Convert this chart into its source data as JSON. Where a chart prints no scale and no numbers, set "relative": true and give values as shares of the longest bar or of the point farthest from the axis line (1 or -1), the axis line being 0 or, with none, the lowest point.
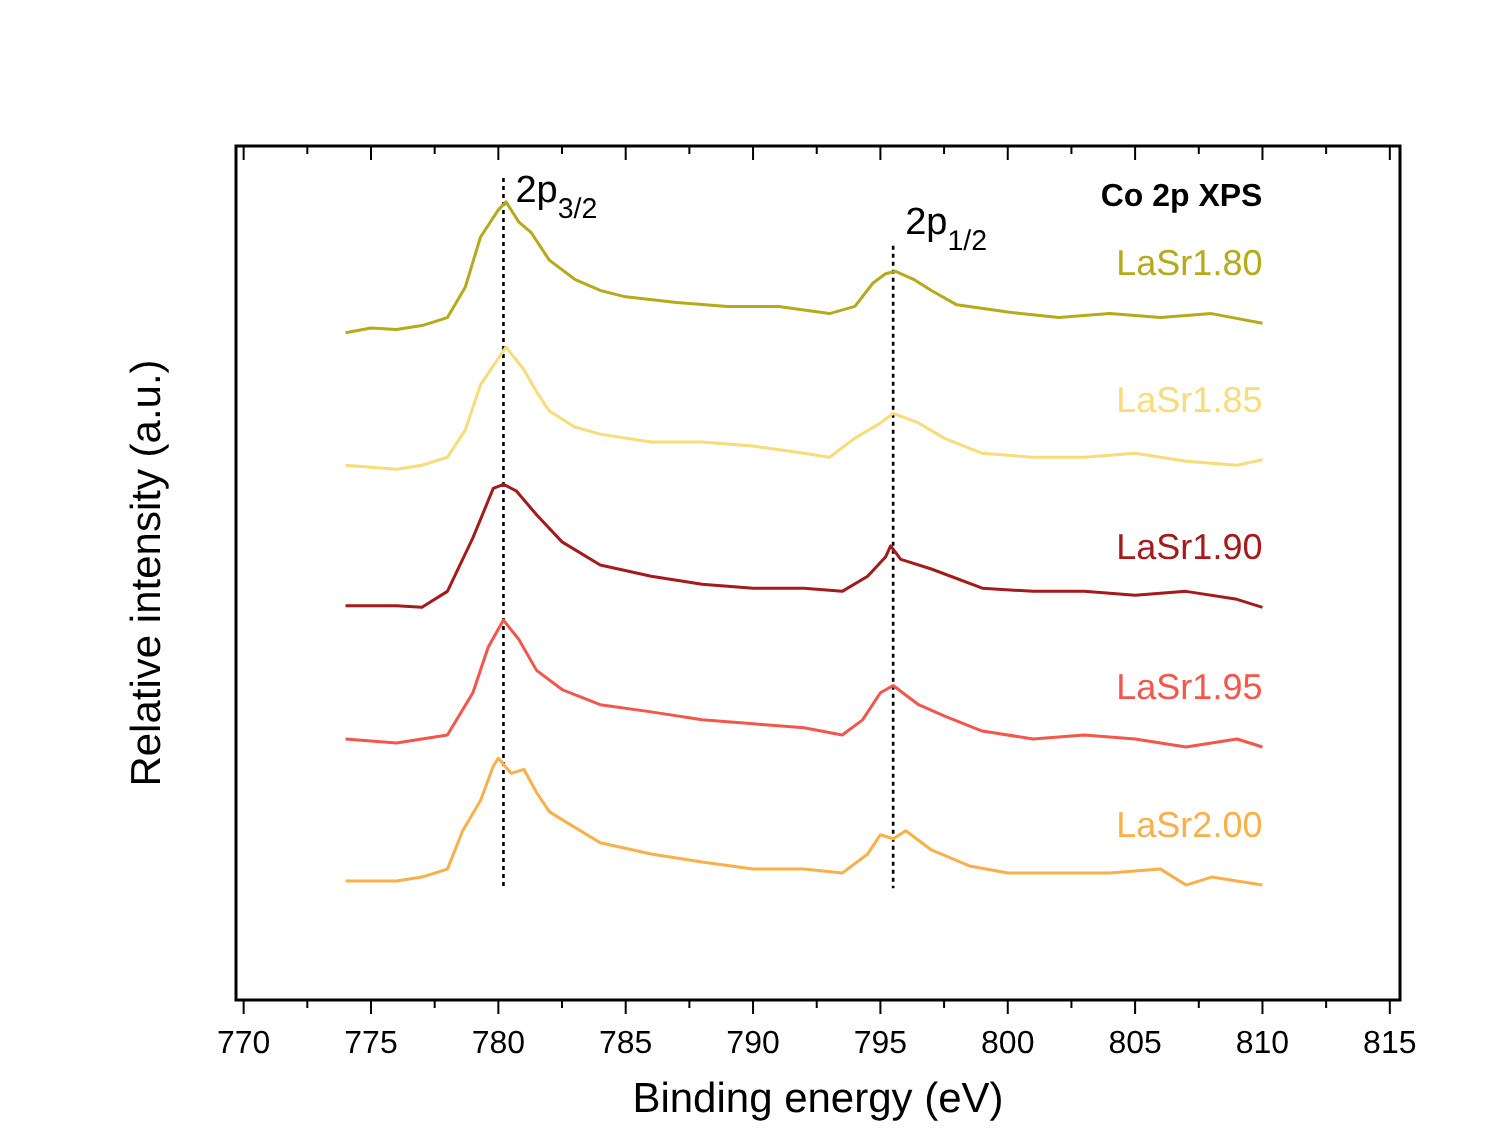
{
  "chart_data": {
    "type": "line",
    "relative": true,
    "xlabel": "Binding energy (eV)",
    "ylabel": "Relative intensity (a.u.)",
    "annotations": [
      "Co 2p XPS"
    ],
    "xlim": [
      769.7,
      815.4
    ],
    "xticks": [
      770,
      {
        "value": 772.5,
        "label": null
      },
      775,
      {
        "value": 777.5,
        "label": null
      },
      780,
      {
        "value": 782.5,
        "label": null
      },
      785,
      {
        "value": 787.5,
        "label": null
      },
      790,
      {
        "value": 792.5,
        "label": null
      },
      795,
      {
        "value": 797.5,
        "label": null
      },
      800,
      {
        "value": 802.5,
        "label": null
      },
      805,
      {
        "value": 807.5,
        "label": null
      },
      810,
      {
        "value": 812.5,
        "label": null
      },
      815
    ],
    "ref_lines": [
      {
        "axis": "x",
        "value": 780.2,
        "label": "2p$_{3/2}$",
        "line_style": "dotted",
        "color": "#000000"
      },
      {
        "axis": "x",
        "value": 795.5,
        "label": "2p$_{1/2}$",
        "line_style": "dotted",
        "color": "#000000"
      }
    ],
    "series": [
      {
        "name": "LaSr1.80",
        "color": "#b5aa1a",
        "x": [
          774,
          775,
          776,
          777,
          778,
          778.7,
          779.3,
          780,
          780.3,
          780.8,
          781.3,
          782,
          783,
          784,
          785,
          787,
          789,
          791,
          793,
          794,
          794.7,
          795.2,
          795.6,
          796.3,
          797,
          798,
          800,
          802,
          804,
          806,
          808,
          810
        ],
        "values": [
          0.836,
          0.842,
          0.84,
          0.845,
          0.855,
          0.893,
          0.956,
          0.99,
          1.0,
          0.975,
          0.961,
          0.927,
          0.903,
          0.889,
          0.881,
          0.874,
          0.869,
          0.869,
          0.86,
          0.869,
          0.898,
          0.91,
          0.913,
          0.903,
          0.889,
          0.871,
          0.862,
          0.855,
          0.86,
          0.855,
          0.86,
          0.848
        ]
      },
      {
        "name": "LaSr1.85",
        "color": "#f9dc7a",
        "x": [
          774,
          776,
          777,
          778,
          778.7,
          779.3,
          780.3,
          781,
          781.5,
          782,
          783,
          784,
          786,
          788,
          790,
          792,
          793,
          794,
          795,
          795.5,
          796.5,
          797.5,
          799,
          801,
          803,
          805,
          807,
          809,
          810
        ],
        "values": [
          0.67,
          0.665,
          0.67,
          0.68,
          0.714,
          0.771,
          0.818,
          0.79,
          0.762,
          0.738,
          0.718,
          0.709,
          0.699,
          0.699,
          0.694,
          0.685,
          0.68,
          0.704,
          0.723,
          0.735,
          0.723,
          0.704,
          0.685,
          0.68,
          0.68,
          0.685,
          0.675,
          0.67,
          0.677
        ]
      },
      {
        "name": "LaSr1.90",
        "color": "#a51a1a",
        "x": [
          774,
          776,
          777,
          778,
          779,
          779.8,
          780.2,
          780.7,
          781.5,
          782.5,
          784,
          786,
          788,
          790,
          792,
          793.5,
          794.5,
          795.2,
          795.4,
          795.8,
          797,
          799,
          801,
          803,
          805,
          807,
          809,
          810
        ],
        "values": [
          0.494,
          0.494,
          0.492,
          0.512,
          0.579,
          0.641,
          0.646,
          0.638,
          0.608,
          0.574,
          0.545,
          0.531,
          0.521,
          0.516,
          0.516,
          0.512,
          0.531,
          0.555,
          0.569,
          0.552,
          0.54,
          0.516,
          0.512,
          0.512,
          0.507,
          0.512,
          0.502,
          0.492
        ]
      },
      {
        "name": "LaSr1.95",
        "color": "#f5564b",
        "x": [
          774,
          776,
          777,
          778,
          779,
          779.6,
          780.2,
          780.8,
          781.5,
          782.5,
          784,
          786,
          788,
          790,
          792,
          793.5,
          794.3,
          795,
          795.5,
          796.5,
          797.5,
          799,
          801,
          803,
          805,
          807,
          809,
          810
        ],
        "values": [
          0.327,
          0.322,
          0.327,
          0.332,
          0.385,
          0.442,
          0.476,
          0.452,
          0.413,
          0.389,
          0.37,
          0.361,
          0.351,
          0.346,
          0.341,
          0.332,
          0.351,
          0.385,
          0.394,
          0.37,
          0.356,
          0.337,
          0.327,
          0.332,
          0.327,
          0.317,
          0.327,
          0.317
        ]
      },
      {
        "name": "LaSr2.00",
        "color": "#f9b04a",
        "x": [
          774,
          776,
          777,
          778,
          778.6,
          779.3,
          779.8,
          780,
          780.5,
          781,
          781.5,
          782,
          782.5,
          784,
          786,
          788,
          790,
          792,
          793.5,
          794.5,
          795,
          795.5,
          796,
          797,
          798.5,
          800,
          802,
          804,
          806,
          807,
          808,
          810
        ],
        "values": [
          0.149,
          0.149,
          0.154,
          0.164,
          0.212,
          0.25,
          0.293,
          0.303,
          0.284,
          0.289,
          0.26,
          0.236,
          0.226,
          0.197,
          0.183,
          0.173,
          0.164,
          0.164,
          0.159,
          0.183,
          0.207,
          0.202,
          0.212,
          0.188,
          0.168,
          0.159,
          0.159,
          0.159,
          0.164,
          0.144,
          0.154,
          0.144
        ]
      }
    ]
  }
}
